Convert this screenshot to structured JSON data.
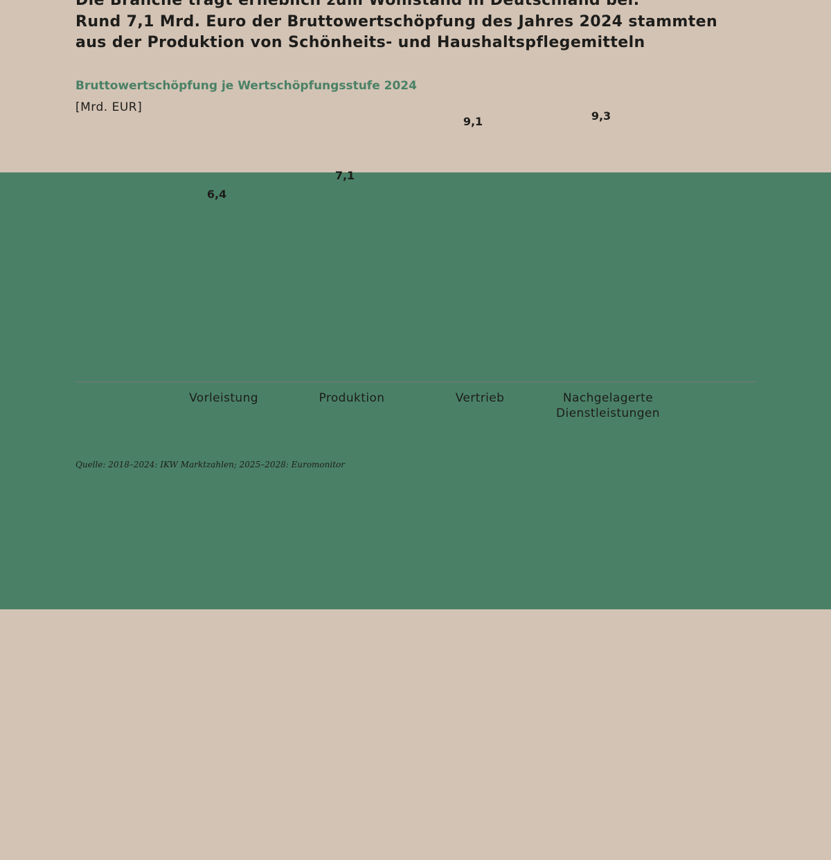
{
  "chart_data": {
    "type": "bar",
    "title": [
      "Die Branche trägt erheblich zum Wohlstand in Deutschland bei:",
      "Rund 7,1 Mrd. Euro der Bruttowertschöpfung des Jahres 2024 stammten",
      "aus der Produktion von Schönheits- und Haushaltspflegemitteln"
    ],
    "subtitle": "Bruttowertschöpfung je Wertschöpfungsstufe 2024",
    "unit": "[Mrd. EUR]",
    "categories": [
      "Vorleistung",
      "Produktion",
      "Vertrieb",
      "Nachgelagerte Dienstleistungen"
    ],
    "values": [
      6.4,
      7.1,
      9.1,
      9.3
    ],
    "value_labels": [
      "6,4",
      "7,1",
      "9,1",
      "9,3"
    ],
    "colors": [
      "#d3c3b4",
      "#4a8166",
      "#4a8166",
      "#d3c3b4"
    ],
    "source": "Quelle: 2018–2024: IKW Marktzahlen; 2025–2028: Euromonitor"
  }
}
